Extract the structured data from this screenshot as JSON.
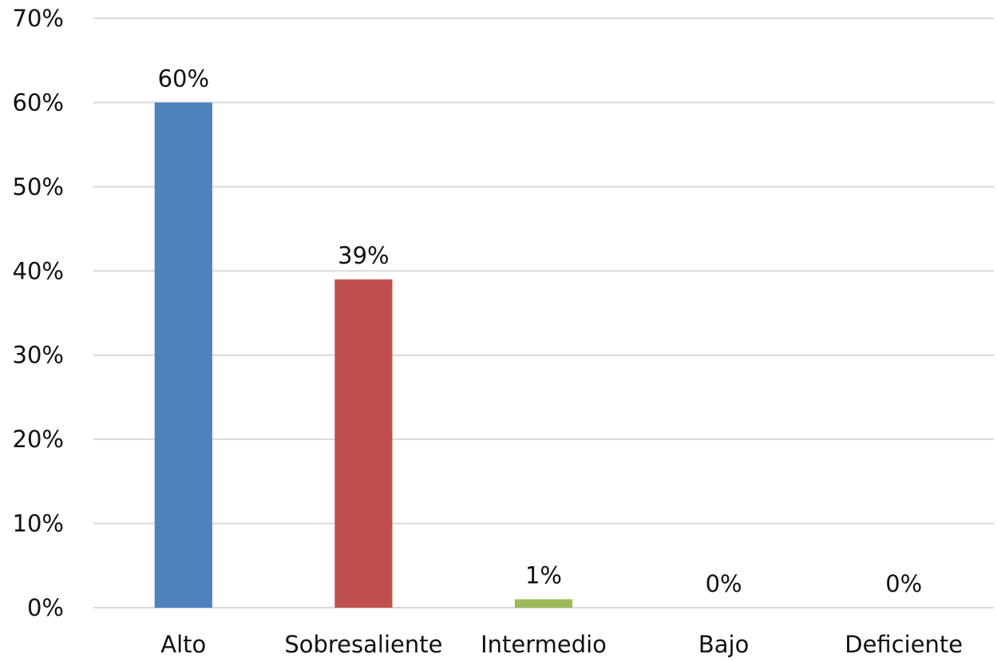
{
  "chart_data": {
    "type": "bar",
    "categories": [
      "Alto",
      "Sobresaliente",
      "Intermedio",
      "Bajo",
      "Deficiente"
    ],
    "values": [
      60,
      39,
      1,
      0,
      0
    ],
    "data_labels": [
      "60%",
      "39%",
      "1%",
      "0%",
      "0%"
    ],
    "colors": [
      "#4f81bd",
      "#c0504d",
      "#9bbb59",
      "#8064a2",
      "#4bacc6"
    ],
    "yticks": [
      0,
      10,
      20,
      30,
      40,
      50,
      60,
      70
    ],
    "ytick_labels": [
      "0%",
      "10%",
      "20%",
      "30%",
      "40%",
      "50%",
      "60%",
      "70%"
    ],
    "ylim": [
      0,
      70
    ],
    "grid": true,
    "legend": "none",
    "title": "",
    "xlabel": "",
    "ylabel": ""
  }
}
